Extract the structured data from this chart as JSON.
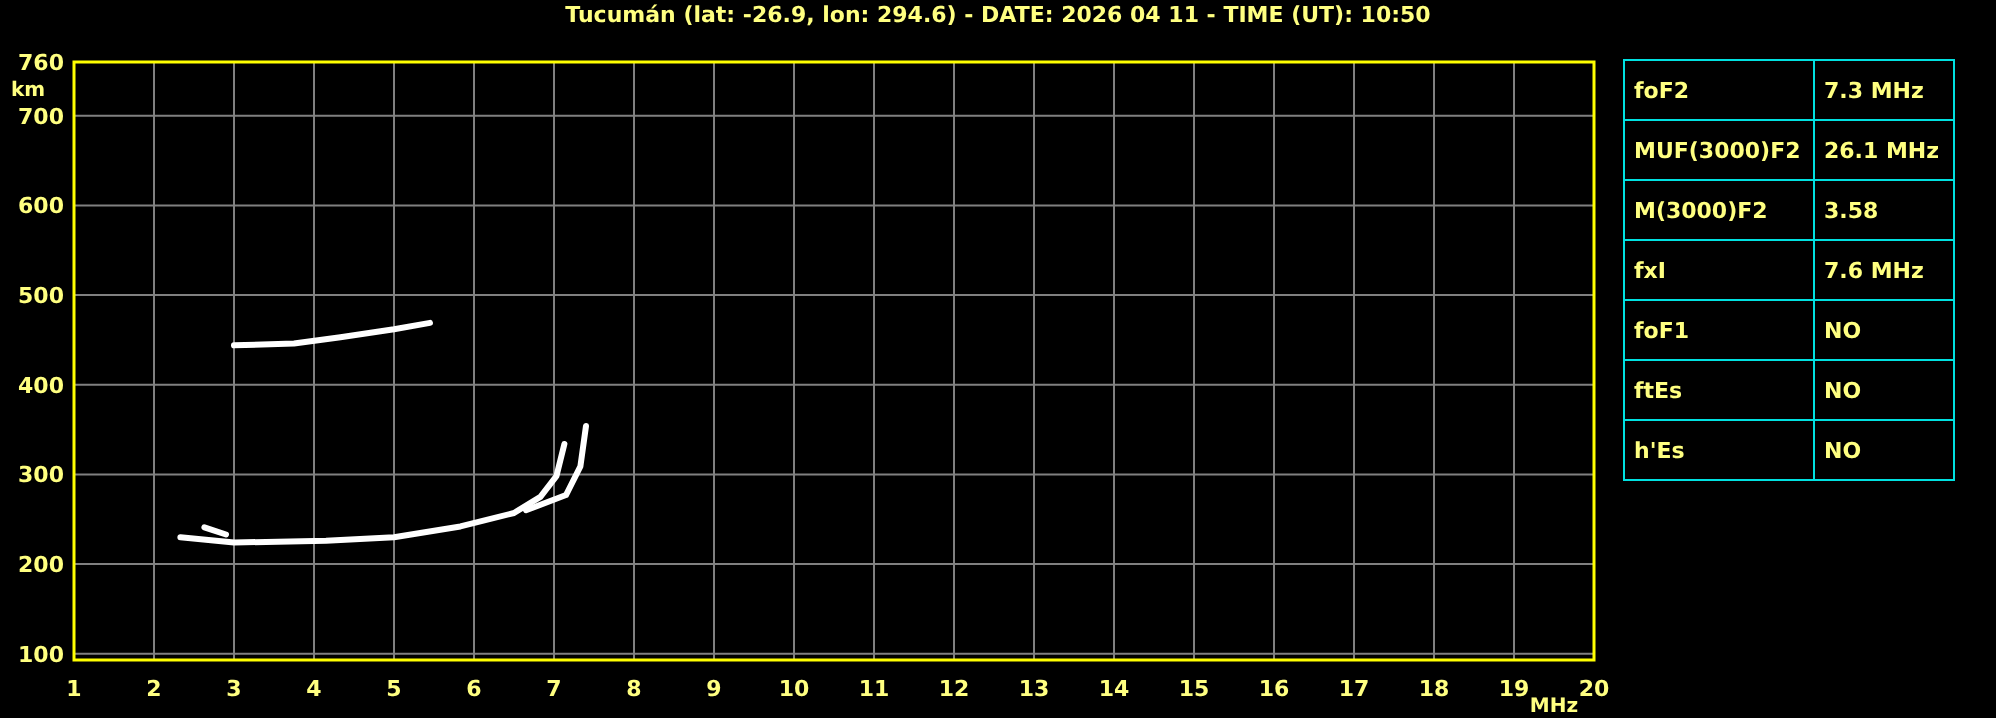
{
  "chart_data": [
    {
      "type": "line",
      "title": "Tucumán (lat: -26.9, lon: 294.6) - DATE: 2026 04 11 - TIME (UT): 10:50",
      "xlabel": "MHz",
      "ylabel": "km",
      "xlim": [
        1,
        20
      ],
      "ylim": [
        93,
        760
      ],
      "xticks": [
        1,
        2,
        3,
        4,
        5,
        6,
        7,
        8,
        9,
        10,
        11,
        12,
        13,
        14,
        15,
        16,
        17,
        18,
        19,
        20
      ],
      "yticks": [
        100,
        200,
        300,
        400,
        500,
        600,
        700,
        760
      ],
      "grid": true,
      "marker": "none",
      "line_style": "solid",
      "series": [
        {
          "color": "#ffffff",
          "x": [
            2.33,
            3.0,
            4.15,
            5.0,
            5.83,
            6.5,
            6.83,
            7.03,
            7.13
          ],
          "values": [
            230,
            224,
            226,
            230,
            242,
            257,
            275,
            298,
            334
          ]
        },
        {
          "color": "#ffffff",
          "x": [
            6.65,
            7.15,
            7.33,
            7.4
          ],
          "values": [
            260,
            277,
            309,
            354
          ]
        },
        {
          "color": "#ffffff",
          "x": [
            3.0,
            3.75,
            4.33,
            5.0,
            5.45
          ],
          "values": [
            444,
            446,
            453,
            462,
            469
          ]
        },
        {
          "color": "#ffffff",
          "x": [
            2.63,
            2.9
          ],
          "values": [
            241,
            233
          ]
        }
      ]
    },
    {
      "type": "other",
      "cells": [
        [
          "foF2",
          "7.3 MHz"
        ],
        [
          "MUF(3000)F2",
          "26.1 MHz"
        ],
        [
          "M(3000)F2",
          "3.58"
        ],
        [
          "fxI",
          "7.6 MHz"
        ],
        [
          "foF1",
          "NO"
        ],
        [
          "ftEs",
          "NO"
        ],
        [
          "h'Es",
          "NO"
        ]
      ]
    }
  ]
}
